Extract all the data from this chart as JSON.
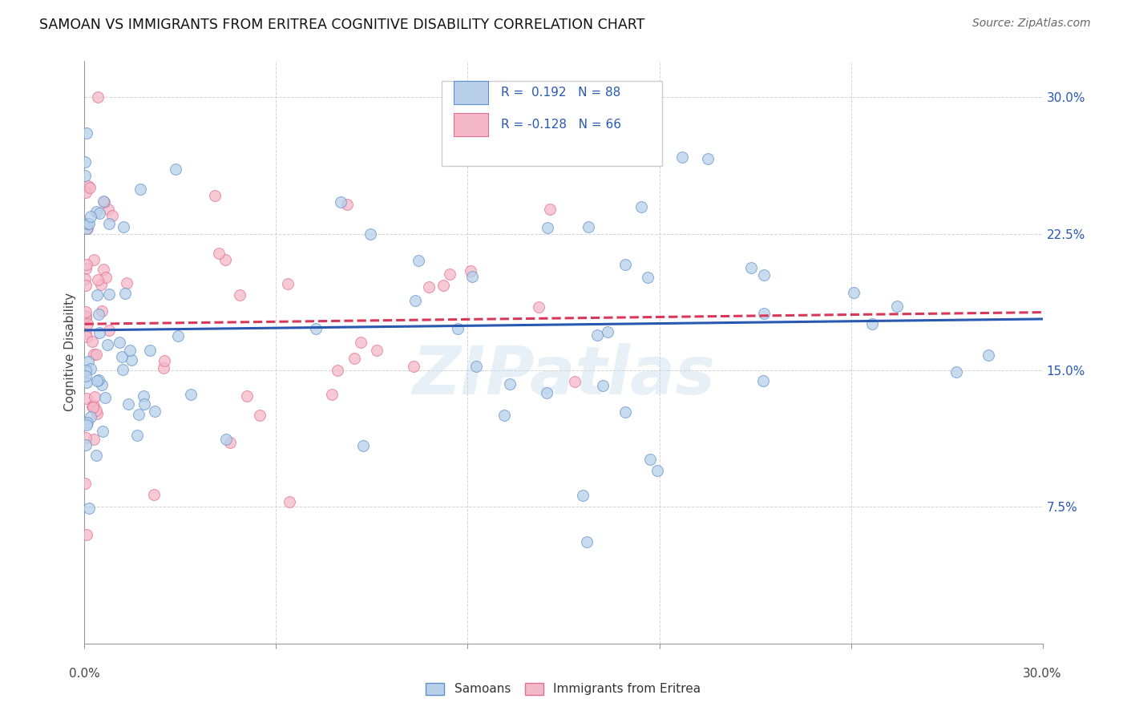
{
  "title": "SAMOAN VS IMMIGRANTS FROM ERITREA COGNITIVE DISABILITY CORRELATION CHART",
  "source": "Source: ZipAtlas.com",
  "ylabel": "Cognitive Disability",
  "xlim": [
    0.0,
    0.3
  ],
  "ylim": [
    0.0,
    0.32
  ],
  "yticks": [
    0.075,
    0.15,
    0.225,
    0.3
  ],
  "ytick_labels": [
    "7.5%",
    "15.0%",
    "22.5%",
    "30.0%"
  ],
  "xtick_positions": [
    0.0,
    0.06,
    0.12,
    0.18,
    0.24,
    0.3
  ],
  "samoans_R": 0.192,
  "samoans_N": 88,
  "eritrea_R": -0.128,
  "eritrea_N": 66,
  "samoans_dot_color": "#b8d0ea",
  "samoans_edge_color": "#6090c8",
  "eritrea_dot_color": "#f5b8c8",
  "eritrea_edge_color": "#e07090",
  "samoans_line_color": "#2858b0",
  "eritrea_line_color": "#d83858",
  "background_color": "#ffffff",
  "legend_labels": [
    "Samoans",
    "Immigrants from Eritrea"
  ],
  "watermark": "ZIPatlas",
  "title_fontsize": 12.5,
  "ylabel_fontsize": 11,
  "tick_fontsize": 11,
  "source_fontsize": 10,
  "legend_fontsize": 11,
  "dot_size": 100,
  "dot_alpha": 0.75,
  "line_width": 2.2,
  "grid_color": "#c8c8c8",
  "grid_alpha": 0.8,
  "watermark_color": "#c5d8ec",
  "watermark_alpha": 0.4,
  "watermark_fontsize": 60
}
